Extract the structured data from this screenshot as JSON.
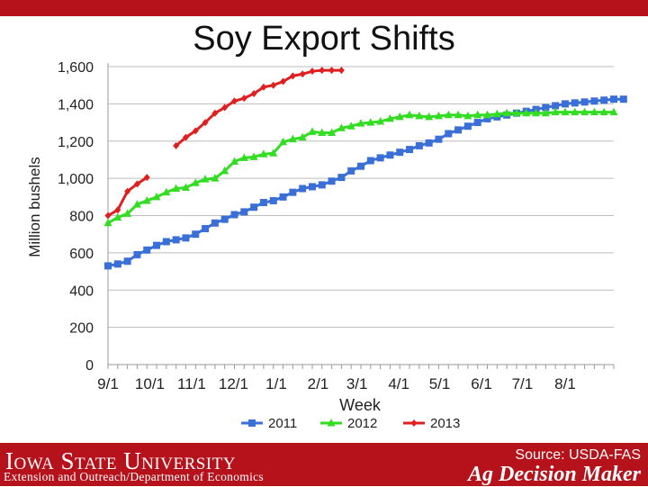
{
  "page": {
    "title": "Soy Export Shifts"
  },
  "footer": {
    "university": "Iowa State University",
    "department": "Extension and Outreach/Department of Economics",
    "source": "Source: USDA-FAS",
    "brand": "Ag Decision Maker"
  },
  "colors": {
    "brand_red": "#b5121b",
    "series_2011": "#3a6fd8",
    "series_2012": "#33dd22",
    "series_2013": "#e02020"
  },
  "chart_data": {
    "type": "line",
    "xlabel": "Week",
    "ylabel": "Million bushels",
    "ylim": [
      0,
      1600
    ],
    "y_ticks": [
      0,
      200,
      400,
      600,
      800,
      1000,
      1200,
      1400,
      1600
    ],
    "y_tick_labels": [
      "0",
      "200",
      "400",
      "600",
      "800",
      "1,000",
      "1,200",
      "1,400",
      "1,600"
    ],
    "x_tick_labels": [
      "9/1",
      "10/1",
      "11/1",
      "12/1",
      "1/1",
      "2/1",
      "3/1",
      "4/1",
      "5/1",
      "6/1",
      "7/1",
      "8/1"
    ],
    "x_tick_weeks": [
      0,
      4.3,
      8.6,
      12.9,
      17.3,
      21.6,
      25.6,
      29.9,
      34.1,
      38.4,
      42.6,
      47.0
    ],
    "x_range": [
      0,
      52
    ],
    "legend_position": "bottom",
    "gridlines": "horizontal",
    "series": [
      {
        "name": "2011",
        "marker": "square",
        "color": "#3a6fd8",
        "values": [
          530,
          540,
          555,
          590,
          615,
          640,
          660,
          670,
          680,
          700,
          730,
          760,
          780,
          805,
          820,
          845,
          870,
          880,
          900,
          925,
          945,
          955,
          965,
          985,
          1005,
          1040,
          1065,
          1095,
          1110,
          1125,
          1140,
          1155,
          1175,
          1190,
          1210,
          1240,
          1260,
          1280,
          1300,
          1320,
          1330,
          1340,
          1350,
          1360,
          1370,
          1380,
          1390,
          1400,
          1405,
          1410,
          1415,
          1420,
          1425,
          1425
        ]
      },
      {
        "name": "2012",
        "marker": "triangle",
        "color": "#33dd22",
        "values": [
          760,
          790,
          810,
          860,
          880,
          900,
          925,
          945,
          950,
          975,
          995,
          1000,
          1040,
          1090,
          1110,
          1115,
          1130,
          1135,
          1195,
          1210,
          1220,
          1250,
          1245,
          1245,
          1270,
          1280,
          1295,
          1300,
          1305,
          1320,
          1330,
          1340,
          1335,
          1330,
          1335,
          1340,
          1340,
          1335,
          1340,
          1340,
          1345,
          1350,
          1350,
          1350,
          1350,
          1350,
          1355,
          1355,
          1355,
          1355,
          1355,
          1355,
          1355
        ]
      },
      {
        "name": "2013",
        "marker": "diamond",
        "color": "#e02020",
        "segments": [
          {
            "start_week": 0,
            "values": [
              800,
              830,
              930,
              970,
              1005
            ]
          },
          {
            "start_week": 7,
            "values": [
              1175,
              1220,
              1255,
              1300,
              1350,
              1380,
              1415,
              1430,
              1455,
              1490,
              1500,
              1520,
              1550,
              1560,
              1575,
              1580,
              1580,
              1580
            ]
          }
        ]
      }
    ]
  }
}
